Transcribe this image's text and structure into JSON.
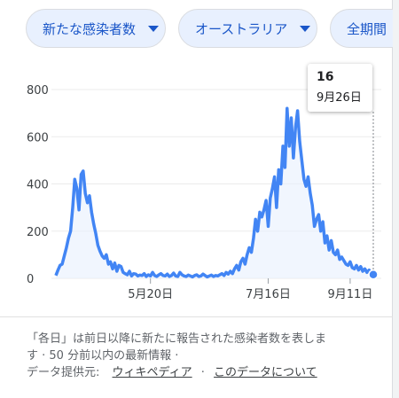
{
  "filters": {
    "metric": "新たな感染者数",
    "region": "オーストラリア",
    "period": "全期間"
  },
  "tooltip": {
    "value": "16",
    "date": "9月26日"
  },
  "footer": {
    "note_line1": "「各日」は前日以降に新たに報告された感染者数を表しま",
    "note_line2": "す · 50 分前以内の最新情報 ·",
    "source_label": "データ提供元:",
    "source_link": "ウィキペディア",
    "about_link": "このデータについて",
    "separator": "·"
  },
  "chart_data": {
    "type": "area",
    "title": "",
    "xlabel": "",
    "ylabel": "",
    "ylim": [
      0,
      800
    ],
    "yticks": [
      0,
      200,
      400,
      600,
      800
    ],
    "xticks": [
      "5月20日",
      "7月16日",
      "9月11日"
    ],
    "grid": true,
    "line_color": "#4285f4",
    "series": [
      {
        "values": [
          12,
          35,
          55,
          60,
          95,
          130,
          170,
          200,
          300,
          420,
          380,
          290,
          440,
          455,
          360,
          320,
          350,
          280,
          230,
          190,
          140,
          115,
          95,
          85,
          100,
          60,
          70,
          40,
          65,
          30,
          55,
          50,
          25,
          20,
          15,
          30,
          10,
          20,
          18,
          10,
          14,
          12,
          20,
          8,
          15,
          10,
          25,
          12,
          8,
          15,
          20,
          12,
          10,
          18,
          8,
          12,
          22,
          10,
          8,
          25,
          15,
          10,
          8,
          14,
          10,
          6,
          12,
          15,
          8,
          10,
          18,
          12,
          6,
          10,
          14,
          8,
          12,
          10,
          15,
          20,
          12,
          25,
          18,
          30,
          20,
          40,
          55,
          35,
          70,
          85,
          60,
          100,
          130,
          110,
          170,
          250,
          200,
          280,
          260,
          290,
          330,
          220,
          340,
          380,
          430,
          300,
          460,
          400,
          560,
          470,
          720,
          560,
          680,
          510,
          640,
          710,
          580,
          500,
          420,
          390,
          430,
          360,
          310,
          220,
          250,
          270,
          200,
          240,
          150,
          180,
          120,
          160,
          110,
          100,
          120,
          80,
          90,
          75,
          60,
          55,
          70,
          45,
          40,
          55,
          35,
          50,
          30,
          40,
          25,
          35,
          20,
          16
        ]
      }
    ]
  }
}
